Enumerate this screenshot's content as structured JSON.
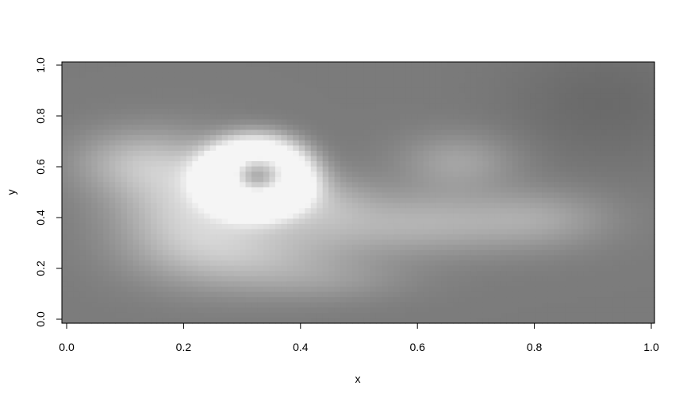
{
  "chart_data": {
    "type": "heatmap",
    "title": "",
    "xlabel": "x",
    "ylabel": "y",
    "xlim": [
      0.0,
      1.0
    ],
    "ylim": [
      0.0,
      1.0
    ],
    "x_ticks": [
      "0.0",
      "0.2",
      "0.4",
      "0.6",
      "0.8",
      "1.0"
    ],
    "y_ticks": [
      "0.0",
      "0.2",
      "0.4",
      "0.6",
      "0.8",
      "1.0"
    ],
    "grid": false,
    "legend": "none",
    "color_scale": "grayscale",
    "color_low": "#666666",
    "color_high": "#f5f5f5",
    "background_level": 0.15,
    "features": [
      {
        "kind": "ring",
        "x": 0.325,
        "y": 0.56,
        "radius": 0.11,
        "width": 0.07,
        "amplitude": 0.95
      },
      {
        "kind": "blob",
        "x": 0.21,
        "y": 0.45,
        "sx": 0.09,
        "sy": 0.15,
        "amplitude": 0.55
      },
      {
        "kind": "blob",
        "x": 0.12,
        "y": 0.62,
        "sx": 0.08,
        "sy": 0.09,
        "amplitude": 0.35
      },
      {
        "kind": "blob",
        "x": 0.31,
        "y": 0.25,
        "sx": 0.12,
        "sy": 0.1,
        "amplitude": 0.38
      },
      {
        "kind": "blob",
        "x": 0.43,
        "y": 0.47,
        "sx": 0.06,
        "sy": 0.08,
        "amplitude": 0.28
      },
      {
        "kind": "blob",
        "x": 0.6,
        "y": 0.38,
        "sx": 0.16,
        "sy": 0.09,
        "amplitude": 0.38
      },
      {
        "kind": "blob",
        "x": 0.67,
        "y": 0.62,
        "sx": 0.07,
        "sy": 0.08,
        "amplitude": 0.28
      },
      {
        "kind": "blob",
        "x": 0.82,
        "y": 0.4,
        "sx": 0.08,
        "sy": 0.08,
        "amplitude": 0.18
      },
      {
        "kind": "blob",
        "x": 0.46,
        "y": 0.15,
        "sx": 0.1,
        "sy": 0.06,
        "amplitude": 0.14
      }
    ],
    "dark_regions": [
      {
        "x": 0.92,
        "y": 0.85,
        "sx": 0.12,
        "sy": 0.18,
        "amplitude": 0.12
      }
    ]
  }
}
